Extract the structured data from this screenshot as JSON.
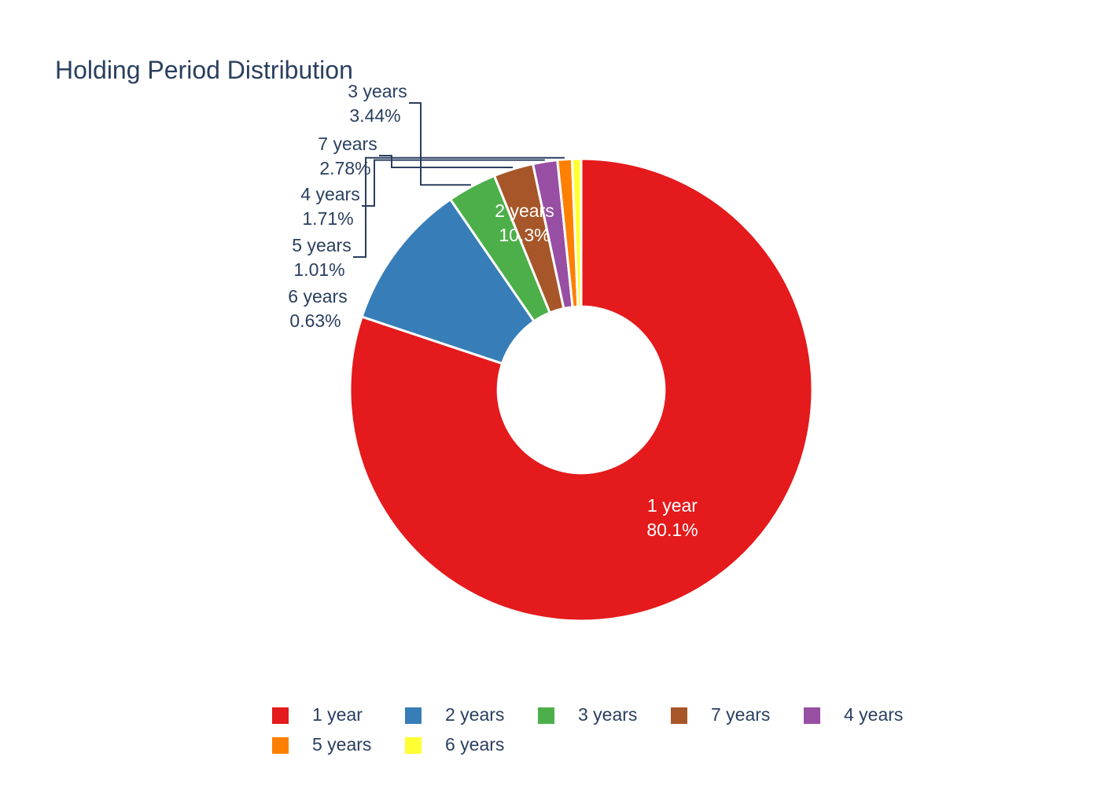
{
  "chart_data": {
    "type": "pie",
    "hole": 0.36,
    "title": "Holding Period Distribution",
    "legend_position": "bottom",
    "slices": [
      {
        "label": "1 year",
        "value": 80.1,
        "text": "80.1%",
        "color": "#e41a1c",
        "label_placement": "inside",
        "text_color": "#ffffff"
      },
      {
        "label": "2 years",
        "value": 10.3,
        "text": "10.3%",
        "color": "#377eb8",
        "label_placement": "inside",
        "text_color": "#ffffff"
      },
      {
        "label": "3 years",
        "value": 3.44,
        "text": "3.44%",
        "color": "#4daf4a",
        "label_placement": "outside",
        "text_color": "#2a3f5f"
      },
      {
        "label": "7 years",
        "value": 2.78,
        "text": "2.78%",
        "color": "#a65628",
        "label_placement": "outside",
        "text_color": "#2a3f5f"
      },
      {
        "label": "4 years",
        "value": 1.71,
        "text": "1.71%",
        "color": "#984ea3",
        "label_placement": "outside",
        "text_color": "#2a3f5f"
      },
      {
        "label": "5 years",
        "value": 1.01,
        "text": "1.01%",
        "color": "#ff7f00",
        "label_placement": "outside",
        "text_color": "#2a3f5f"
      },
      {
        "label": "6 years",
        "value": 0.63,
        "text": "0.63%",
        "color": "#ffff33",
        "label_placement": "outside",
        "text_color": "#2a3f5f"
      }
    ],
    "legend": [
      "1 year",
      "2 years",
      "3 years",
      "7 years",
      "4 years",
      "5 years",
      "6 years"
    ]
  }
}
